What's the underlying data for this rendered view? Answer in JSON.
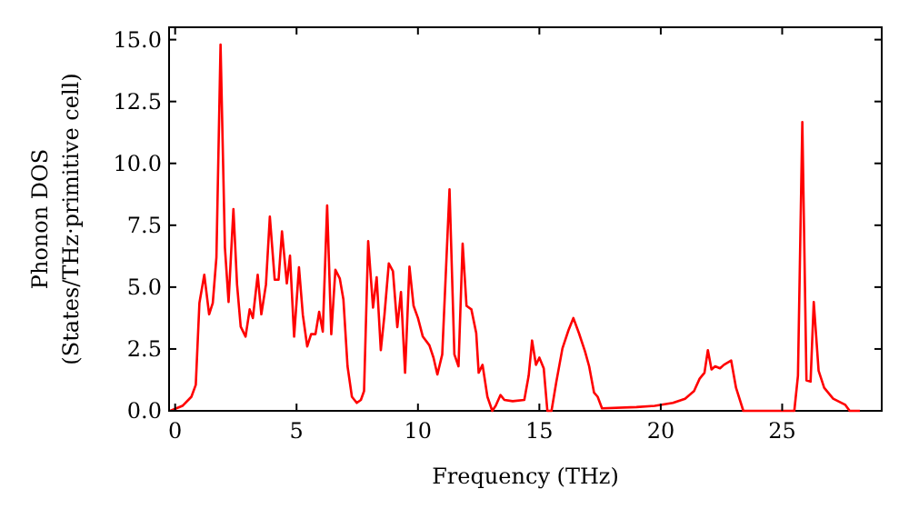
{
  "chart_data": {
    "type": "line",
    "xlabel": "Frequency (THz)",
    "ylabel": "Phonon DOS\n(States/THz·primitive cell)",
    "xlim": [
      -0.25,
      29.1
    ],
    "ylim": [
      0,
      15.5
    ],
    "xticks": [
      0,
      5,
      10,
      15,
      20,
      25
    ],
    "yticks": [
      {
        "value": 0,
        "label": "0.0"
      },
      {
        "value": 2.5,
        "label": "2.5"
      },
      {
        "value": 5,
        "label": "5.0"
      },
      {
        "value": 7.5,
        "label": "7.5"
      },
      {
        "value": 10,
        "label": "10.0"
      },
      {
        "value": 12.5,
        "label": "12.5"
      },
      {
        "value": 15,
        "label": "15.0"
      }
    ],
    "grid": false,
    "marker": "none",
    "line_style": "solid",
    "series": [
      {
        "color": "#ff0000",
        "x": [
          -0.2,
          0.3,
          0.67,
          0.85,
          1.0,
          1.2,
          1.4,
          1.55,
          1.7,
          1.87,
          2.05,
          2.2,
          2.4,
          2.55,
          2.7,
          2.9,
          3.07,
          3.2,
          3.4,
          3.55,
          3.74,
          3.9,
          4.1,
          4.26,
          4.4,
          4.6,
          4.73,
          4.9,
          5.1,
          5.26,
          5.44,
          5.6,
          5.78,
          5.93,
          6.08,
          6.26,
          6.43,
          6.6,
          6.78,
          6.93,
          7.1,
          7.28,
          7.48,
          7.65,
          7.78,
          7.95,
          8.15,
          8.3,
          8.47,
          8.62,
          8.8,
          8.97,
          9.15,
          9.3,
          9.47,
          9.65,
          9.82,
          10.0,
          10.2,
          10.47,
          10.64,
          10.8,
          11.0,
          11.3,
          11.5,
          11.67,
          11.84,
          12.0,
          12.2,
          12.4,
          12.5,
          12.66,
          12.86,
          13.06,
          13.2,
          13.4,
          13.56,
          13.9,
          14.38,
          14.56,
          14.7,
          14.86,
          15.0,
          15.18,
          15.33,
          15.5,
          15.7,
          15.95,
          16.2,
          16.4,
          16.63,
          16.88,
          17.05,
          17.25,
          17.4,
          17.58,
          19.0,
          19.75,
          20.5,
          21.0,
          21.37,
          21.6,
          21.8,
          21.94,
          22.09,
          22.24,
          22.44,
          22.6,
          22.9,
          23.1,
          23.4,
          25.5,
          25.65,
          25.83,
          26.0,
          26.17,
          26.3,
          26.5,
          26.73,
          27.1,
          27.6,
          27.78,
          28.2
        ],
        "values": [
          0,
          0.2,
          0.57,
          1.05,
          4.36,
          5.5,
          3.9,
          4.36,
          6.2,
          14.8,
          6.6,
          4.4,
          8.15,
          5.1,
          3.4,
          3.0,
          4.1,
          3.75,
          5.5,
          3.9,
          5.1,
          7.85,
          5.3,
          5.3,
          7.25,
          5.15,
          6.27,
          3.0,
          5.8,
          3.87,
          2.6,
          3.1,
          3.1,
          4.0,
          3.2,
          8.3,
          3.1,
          5.7,
          5.35,
          4.5,
          1.8,
          0.57,
          0.32,
          0.44,
          0.8,
          6.86,
          4.17,
          5.4,
          2.45,
          3.87,
          5.96,
          5.64,
          3.38,
          4.8,
          1.54,
          5.83,
          4.24,
          3.75,
          3.0,
          2.65,
          2.15,
          1.47,
          2.28,
          8.95,
          2.28,
          1.8,
          6.76,
          4.24,
          4.1,
          3.14,
          1.54,
          1.86,
          0.57,
          0,
          0.2,
          0.64,
          0.44,
          0.39,
          0.44,
          1.42,
          2.84,
          1.86,
          2.15,
          1.72,
          0,
          0,
          1.18,
          2.52,
          3.26,
          3.75,
          3.14,
          2.4,
          1.8,
          0.74,
          0.57,
          0.1,
          0.15,
          0.2,
          0.32,
          0.49,
          0.8,
          1.3,
          1.54,
          2.45,
          1.67,
          1.8,
          1.72,
          1.86,
          2.03,
          0.93,
          0,
          0,
          1.42,
          11.67,
          1.23,
          1.18,
          4.4,
          1.62,
          0.93,
          0.49,
          0.24,
          0,
          0
        ]
      }
    ]
  }
}
